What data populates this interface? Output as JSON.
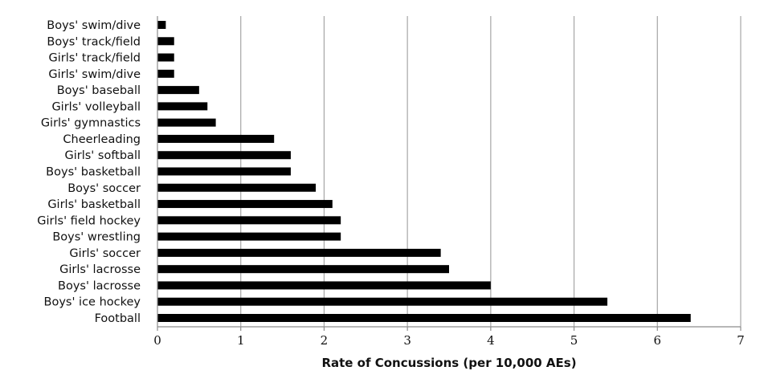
{
  "chart_data": {
    "type": "bar",
    "orientation": "horizontal",
    "categories": [
      "Boys' swim/dive",
      "Boys' track/field",
      "Girls' track/field",
      "Girls' swim/dive",
      "Boys' baseball",
      "Girls' volleyball",
      "Girls' gymnastics",
      "Cheerleading",
      "Girls' softball",
      "Boys' basketball",
      "Boys' soccer",
      "Girls' basketball",
      "Girls' field hockey",
      "Boys' wrestling",
      "Girls' soccer",
      "Girls' lacrosse",
      "Boys' lacrosse",
      "Boys' ice hockey",
      "Football"
    ],
    "values": [
      0.1,
      0.2,
      0.2,
      0.2,
      0.5,
      0.6,
      0.7,
      1.4,
      1.6,
      1.6,
      1.9,
      2.1,
      2.2,
      2.2,
      3.4,
      3.5,
      4.0,
      5.4,
      6.4
    ],
    "xlabel": "Rate of Concussions (per 10,000 AEs)",
    "ylabel": "",
    "xlim": [
      0,
      7
    ],
    "xticks": [
      "0",
      "1",
      "2",
      "3",
      "4",
      "5",
      "6",
      "7"
    ],
    "grid": "vertical",
    "bar_color": "#000000",
    "grid_color": "#a6a6a6"
  }
}
